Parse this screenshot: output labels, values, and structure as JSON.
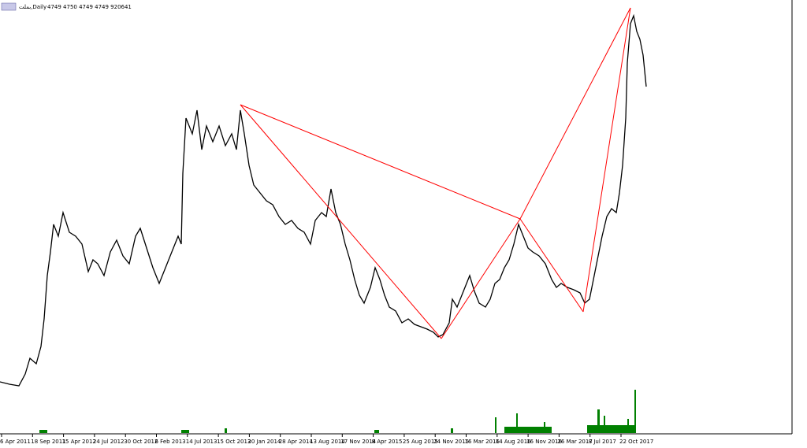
{
  "header": {
    "symbol": "بملت,Daily",
    "quote": "4749 4750 4749 4749 920641"
  },
  "time_axis": {
    "labels": [
      "6 Apr 2011",
      "18 Sep 2011",
      "15 Apr 2012",
      "24 Jul 2012",
      "30 Oct 2012",
      "6 Feb 2013",
      "14 Jul 2013",
      "15 Oct 2013",
      "20 Jan 2014",
      "28 Apr 2014",
      "13 Aug 2014",
      "17 Nov 2014",
      "8 Apr 2015",
      "25 Aug 2015",
      "24 Nov 2015",
      "16 Mar 2016",
      "14 Aug 2016",
      "16 Nov 2016",
      "26 Mar 2017",
      "8 Jul 2017",
      "22 Oct 2017"
    ]
  }
}
